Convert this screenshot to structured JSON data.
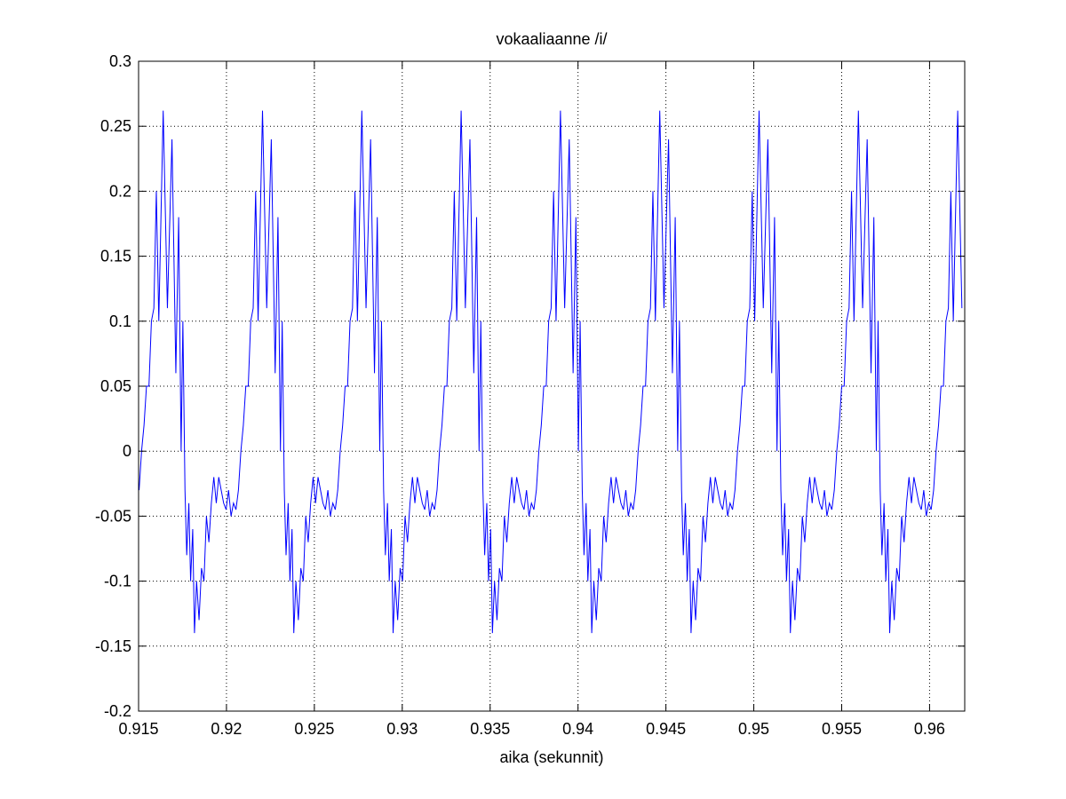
{
  "chart_data": {
    "type": "line",
    "title": "vokaaliaanne /i/",
    "xlabel": "aika (sekunnit)",
    "ylabel": "",
    "xlim": [
      0.915,
      0.962
    ],
    "ylim": [
      -0.2,
      0.3
    ],
    "xticks": [
      0.915,
      0.92,
      0.925,
      0.93,
      0.935,
      0.94,
      0.945,
      0.95,
      0.955,
      0.96
    ],
    "xtick_labels": [
      "0.915",
      "0.92",
      "0.925",
      "0.93",
      "0.935",
      "0.94",
      "0.945",
      "0.95",
      "0.955",
      "0.96"
    ],
    "yticks": [
      -0.2,
      -0.15,
      -0.1,
      -0.05,
      0,
      0.05,
      0.1,
      0.15,
      0.2,
      0.25,
      0.3
    ],
    "ytick_labels": [
      "-0.2",
      "-0.15",
      "-0.1",
      "-0.05",
      "0",
      "0.05",
      "0.1",
      "0.15",
      "0.2",
      "0.25",
      "0.3"
    ],
    "grid": true,
    "series_color": "#0000ff",
    "period": 0.00565,
    "first_peak": 0.9164,
    "series": [
      {
        "x": [
          0.0,
          0.00024,
          0.0005,
          0.00072,
          0.00088,
          0.00102,
          0.00112,
          0.00124,
          0.00134,
          0.00146,
          0.00156,
          0.00168,
          0.00178,
          0.0019,
          0.00204,
          0.00218,
          0.00232,
          0.00246,
          0.0026,
          0.00274,
          0.00288,
          0.00302,
          0.00316,
          0.0033,
          0.00344,
          0.00358,
          0.00372,
          0.00386,
          0.004,
          0.00414,
          0.00428,
          0.00442,
          0.00456,
          0.0047,
          0.00484,
          0.00498,
          0.00512,
          0.00526,
          0.0054,
          0.00565
        ],
        "y": [
          0.262,
          0.11,
          0.24,
          0.06,
          0.18,
          -0.0,
          0.1,
          -0.03,
          -0.08,
          -0.04,
          -0.1,
          -0.06,
          -0.14,
          -0.1,
          -0.13,
          -0.09,
          -0.1,
          -0.05,
          -0.07,
          -0.04,
          -0.02,
          -0.04,
          -0.02,
          -0.03,
          -0.04,
          -0.045,
          -0.03,
          -0.05,
          -0.04,
          -0.045,
          -0.03,
          0.0,
          0.02,
          0.05,
          0.05,
          0.1,
          0.11,
          0.2,
          0.1,
          0.262
        ]
      }
    ]
  }
}
